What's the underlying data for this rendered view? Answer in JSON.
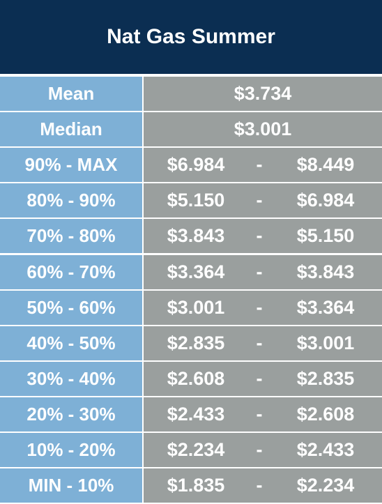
{
  "header": {
    "title": "Nat Gas Summer"
  },
  "table": {
    "summary": [
      {
        "label": "Mean",
        "value": "$3.734"
      },
      {
        "label": "Median",
        "value": "$3.001"
      }
    ],
    "rows": [
      {
        "label": "90% - MAX",
        "low": "$6.984",
        "dash": "-",
        "high": "$8.449"
      },
      {
        "label": "80% - 90%",
        "low": "$5.150",
        "dash": "-",
        "high": "$6.984"
      },
      {
        "label": "70% - 80%",
        "low": "$3.843",
        "dash": "-",
        "high": "$5.150"
      },
      {
        "label": "60% - 70%",
        "low": "$3.364",
        "dash": "-",
        "high": "$3.843"
      },
      {
        "label": "50% - 60%",
        "low": "$3.001",
        "dash": "-",
        "high": "$3.364"
      },
      {
        "label": "40% - 50%",
        "low": "$2.835",
        "dash": "-",
        "high": "$3.001"
      },
      {
        "label": "30% - 40%",
        "low": "$2.608",
        "dash": "-",
        "high": "$2.835"
      },
      {
        "label": "20% - 30%",
        "low": "$2.433",
        "dash": "-",
        "high": "$2.608"
      },
      {
        "label": "10% - 20%",
        "low": "$2.234",
        "dash": "-",
        "high": "$2.433"
      },
      {
        "label": "MIN - 10%",
        "low": "$1.835",
        "dash": "-",
        "high": "$2.234"
      }
    ]
  }
}
